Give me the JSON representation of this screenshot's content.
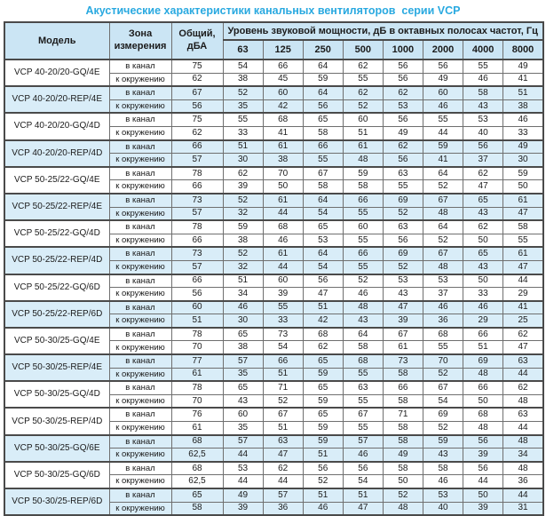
{
  "title": "Акустические характеристики канальных вентиляторов  серии VCP",
  "colors": {
    "title_text": "#29a9e0",
    "header_bg": "#cbe5f4",
    "shaded_row_bg": "#d9edf8",
    "grid_line": "#6f6f6f",
    "frame_line": "#4a4a4a"
  },
  "table": {
    "headers": {
      "model": "Модель",
      "zone": "Зона\nизмерения",
      "total": "Общий,\nдБА",
      "group": "Уровень звуковой мощности, дБ в октавных полосах частот, Гц",
      "frequencies": [
        "63",
        "125",
        "250",
        "500",
        "1000",
        "2000",
        "4000",
        "8000"
      ]
    },
    "zone_labels": {
      "duct": "в канал",
      "ambient": "к окружению"
    },
    "rows": [
      {
        "model": "VCP 40-20/20-GQ/4E",
        "shaded": false,
        "duct": {
          "total": "75",
          "values": [
            54,
            66,
            64,
            62,
            56,
            56,
            55,
            49
          ]
        },
        "ambient": {
          "total": "62",
          "values": [
            38,
            45,
            59,
            55,
            56,
            49,
            46,
            41
          ]
        }
      },
      {
        "model": "VCP 40-20/20-REP/4E",
        "shaded": true,
        "duct": {
          "total": "67",
          "values": [
            52,
            60,
            64,
            62,
            62,
            60,
            58,
            51
          ]
        },
        "ambient": {
          "total": "56",
          "values": [
            35,
            42,
            56,
            52,
            53,
            46,
            43,
            38
          ]
        }
      },
      {
        "model": "VCP 40-20/20-GQ/4D",
        "shaded": false,
        "duct": {
          "total": "75",
          "values": [
            55,
            68,
            65,
            60,
            56,
            55,
            53,
            46
          ]
        },
        "ambient": {
          "total": "62",
          "values": [
            33,
            41,
            58,
            51,
            49,
            44,
            40,
            33
          ]
        }
      },
      {
        "model": "VCP 40-20/20-REP/4D",
        "shaded": true,
        "duct": {
          "total": "66",
          "values": [
            51,
            61,
            66,
            61,
            62,
            59,
            56,
            49
          ]
        },
        "ambient": {
          "total": "57",
          "values": [
            30,
            38,
            55,
            48,
            56,
            41,
            37,
            30
          ]
        }
      },
      {
        "model": "VCP 50-25/22-GQ/4E",
        "shaded": false,
        "duct": {
          "total": "78",
          "values": [
            62,
            70,
            67,
            59,
            63,
            64,
            62,
            59
          ]
        },
        "ambient": {
          "total": "66",
          "values": [
            39,
            50,
            58,
            58,
            55,
            52,
            47,
            50
          ]
        }
      },
      {
        "model": "VCP 50-25/22-REP/4E",
        "shaded": true,
        "duct": {
          "total": "73",
          "values": [
            52,
            61,
            64,
            66,
            69,
            67,
            65,
            61
          ]
        },
        "ambient": {
          "total": "57",
          "values": [
            32,
            44,
            54,
            55,
            52,
            48,
            43,
            47
          ]
        }
      },
      {
        "model": "VCP 50-25/22-GQ/4D",
        "shaded": false,
        "duct": {
          "total": "78",
          "values": [
            59,
            68,
            65,
            60,
            63,
            64,
            62,
            58
          ]
        },
        "ambient": {
          "total": "66",
          "values": [
            38,
            46,
            53,
            55,
            56,
            52,
            50,
            55
          ]
        }
      },
      {
        "model": "VCP 50-25/22-REP/4D",
        "shaded": true,
        "duct": {
          "total": "73",
          "values": [
            52,
            61,
            64,
            66,
            69,
            67,
            65,
            61
          ]
        },
        "ambient": {
          "total": "57",
          "values": [
            32,
            44,
            54,
            55,
            52,
            48,
            43,
            47
          ]
        }
      },
      {
        "model": "VCP 50-25/22-GQ/6D",
        "shaded": false,
        "duct": {
          "total": "66",
          "values": [
            51,
            60,
            56,
            52,
            53,
            53,
            50,
            44
          ]
        },
        "ambient": {
          "total": "56",
          "values": [
            34,
            39,
            47,
            46,
            43,
            37,
            33,
            29
          ]
        }
      },
      {
        "model": "VCP 50-25/22-REP/6D",
        "shaded": true,
        "duct": {
          "total": "60",
          "values": [
            46,
            55,
            51,
            48,
            47,
            46,
            46,
            41
          ]
        },
        "ambient": {
          "total": "51",
          "values": [
            30,
            33,
            42,
            43,
            39,
            36,
            29,
            25
          ]
        }
      },
      {
        "model": "VCP 50-30/25-GQ/4E",
        "shaded": false,
        "duct": {
          "total": "78",
          "values": [
            65,
            73,
            68,
            64,
            67,
            68,
            66,
            62
          ]
        },
        "ambient": {
          "total": "70",
          "values": [
            38,
            54,
            62,
            58,
            61,
            55,
            51,
            47
          ]
        }
      },
      {
        "model": "VCP 50-30/25-REP/4E",
        "shaded": true,
        "duct": {
          "total": "77",
          "values": [
            57,
            66,
            65,
            68,
            73,
            70,
            69,
            63
          ]
        },
        "ambient": {
          "total": "61",
          "values": [
            35,
            51,
            59,
            55,
            58,
            52,
            48,
            44
          ]
        }
      },
      {
        "model": "VCP 50-30/25-GQ/4D",
        "shaded": false,
        "duct": {
          "total": "78",
          "values": [
            65,
            71,
            65,
            63,
            66,
            67,
            66,
            62
          ]
        },
        "ambient": {
          "total": "70",
          "values": [
            43,
            52,
            59,
            55,
            58,
            54,
            50,
            48
          ]
        }
      },
      {
        "model": "VCP 50-30/25-REP/4D",
        "shaded": false,
        "duct": {
          "total": "76",
          "values": [
            60,
            67,
            65,
            67,
            71,
            69,
            68,
            63
          ]
        },
        "ambient": {
          "total": "61",
          "values": [
            35,
            51,
            59,
            55,
            58,
            52,
            48,
            44
          ]
        }
      },
      {
        "model": "VCP 50-30/25-GQ/6E",
        "shaded": true,
        "duct": {
          "total": "68",
          "values": [
            57,
            63,
            59,
            57,
            58,
            59,
            56,
            48
          ]
        },
        "ambient": {
          "total": "62,5",
          "values": [
            44,
            47,
            51,
            46,
            49,
            43,
            39,
            34
          ]
        }
      },
      {
        "model": "VCP 50-30/25-GQ/6D",
        "shaded": false,
        "duct": {
          "total": "68",
          "values": [
            53,
            62,
            56,
            56,
            58,
            58,
            56,
            48
          ]
        },
        "ambient": {
          "total": "62,5",
          "values": [
            44,
            44,
            52,
            54,
            50,
            46,
            44,
            36
          ]
        }
      },
      {
        "model": "VCP 50-30/25-REP/6D",
        "shaded": true,
        "duct": {
          "total": "65",
          "values": [
            49,
            57,
            51,
            51,
            52,
            53,
            50,
            44
          ]
        },
        "ambient": {
          "total": "58",
          "values": [
            39,
            36,
            46,
            47,
            48,
            40,
            39,
            31
          ]
        }
      }
    ]
  }
}
